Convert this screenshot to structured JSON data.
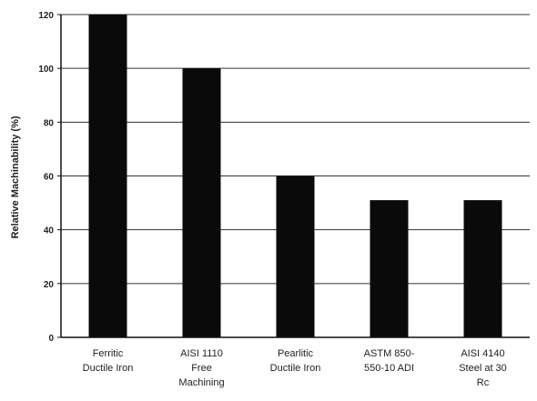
{
  "chart_data": {
    "type": "bar",
    "title": "",
    "xlabel": "",
    "ylabel": "Relative Machinability (%)",
    "ylim": [
      0,
      120
    ],
    "yticks": [
      0,
      20,
      40,
      60,
      80,
      100,
      120
    ],
    "grid": true,
    "categories": [
      [
        "Ferritic",
        "Ductile Iron"
      ],
      [
        "AISI 1110",
        "Free",
        "Machining"
      ],
      [
        "Pearlitic",
        "Ductile Iron"
      ],
      [
        "ASTM 850-",
        "550-10 ADI"
      ],
      [
        "AISI 4140",
        "Steel at 30",
        "Rc"
      ]
    ],
    "values": [
      120,
      100,
      60,
      51,
      51
    ],
    "bar_color": "#0a0a0a",
    "axis_color": "#111111",
    "grid_color": "#333333"
  }
}
